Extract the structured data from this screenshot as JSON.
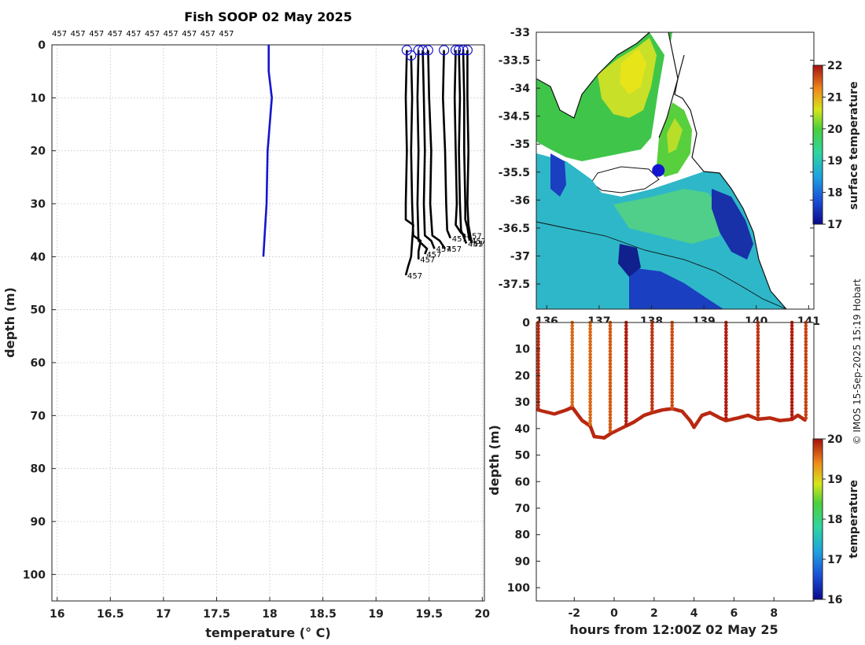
{
  "title": "Fish SOOP 02 May 2025",
  "credit": "© IMOS 15-Sep-2025 15:19 Hobart",
  "chart_data": [
    {
      "type": "line",
      "panel": "profile",
      "title": "Fish SOOP 02 May 2025",
      "xlabel": "temperature (° C)",
      "ylabel": "depth (m)",
      "xlim": [
        15.95,
        20.02
      ],
      "ylim": [
        0,
        105
      ],
      "y_reversed": true,
      "grid": true,
      "xticks": [
        "16",
        "16.5",
        "17",
        "17.5",
        "18",
        "18.5",
        "19",
        "19.5",
        "20"
      ],
      "yticks": [
        "0",
        "10",
        "20",
        "30",
        "40",
        "50",
        "60",
        "70",
        "80",
        "90",
        "100"
      ],
      "top_labels": [
        "457",
        "457",
        "457",
        "457",
        "457",
        "457",
        "457",
        "457",
        "457",
        "457"
      ],
      "mean_profile": {
        "color": "#1515d0",
        "points": [
          [
            17.99,
            0
          ],
          [
            17.99,
            5
          ],
          [
            18.02,
            10
          ],
          [
            17.98,
            20
          ],
          [
            17.97,
            30
          ],
          [
            17.94,
            40
          ]
        ]
      },
      "casts": [
        {
          "label": "457",
          "points": [
            [
              19.29,
              1
            ],
            [
              19.28,
              10
            ],
            [
              19.29,
              20
            ],
            [
              19.28,
              30
            ],
            [
              19.28,
              33
            ],
            [
              19.35,
              34
            ],
            [
              19.33,
              40
            ],
            [
              19.3,
              42
            ],
            [
              19.28,
              43.5
            ]
          ]
        },
        {
          "label": "457",
          "points": [
            [
              19.33,
              2
            ],
            [
              19.34,
              10
            ],
            [
              19.33,
              20
            ],
            [
              19.34,
              30
            ],
            [
              19.35,
              36
            ],
            [
              19.42,
              37
            ],
            [
              19.4,
              39
            ],
            [
              19.4,
              40.5
            ]
          ]
        },
        {
          "label": "457",
          "points": [
            [
              19.4,
              1
            ],
            [
              19.39,
              10
            ],
            [
              19.4,
              20
            ],
            [
              19.39,
              30
            ],
            [
              19.4,
              37
            ],
            [
              19.48,
              38.5
            ],
            [
              19.46,
              39.5
            ]
          ]
        },
        {
          "label": "457",
          "points": [
            [
              19.44,
              1
            ],
            [
              19.45,
              10
            ],
            [
              19.46,
              20
            ],
            [
              19.45,
              30
            ],
            [
              19.46,
              36
            ],
            [
              19.52,
              37
            ],
            [
              19.55,
              38.5
            ]
          ]
        },
        {
          "label": "457",
          "points": [
            [
              19.49,
              1
            ],
            [
              19.5,
              10
            ],
            [
              19.52,
              20
            ],
            [
              19.51,
              30
            ],
            [
              19.53,
              36
            ],
            [
              19.6,
              37
            ],
            [
              19.65,
              38.5
            ]
          ]
        },
        {
          "label": "457",
          "points": [
            [
              19.64,
              1
            ],
            [
              19.63,
              10
            ],
            [
              19.65,
              20
            ],
            [
              19.66,
              30
            ],
            [
              19.67,
              35
            ],
            [
              19.7,
              36.5
            ]
          ]
        },
        {
          "label": "457",
          "points": [
            [
              19.75,
              1
            ],
            [
              19.74,
              10
            ],
            [
              19.75,
              20
            ],
            [
              19.76,
              30
            ],
            [
              19.75,
              34
            ],
            [
              19.8,
              35.5
            ],
            [
              19.84,
              36
            ]
          ]
        },
        {
          "label": "457",
          "points": [
            [
              19.78,
              1
            ],
            [
              19.79,
              10
            ],
            [
              19.78,
              20
            ],
            [
              19.79,
              30
            ],
            [
              19.8,
              35
            ],
            [
              19.85,
              37.5
            ]
          ]
        },
        {
          "label": "457",
          "points": [
            [
              19.82,
              1
            ],
            [
              19.83,
              10
            ],
            [
              19.83,
              20
            ],
            [
              19.84,
              30
            ],
            [
              19.84,
              33
            ],
            [
              19.86,
              34.5
            ],
            [
              19.88,
              37
            ]
          ]
        },
        {
          "label": "457",
          "points": [
            [
              19.86,
              1
            ],
            [
              19.86,
              10
            ],
            [
              19.87,
              20
            ],
            [
              19.86,
              30
            ],
            [
              19.87,
              34
            ],
            [
              19.9,
              37.5
            ]
          ]
        }
      ]
    },
    {
      "type": "heatmap",
      "panel": "map",
      "xticks": [
        "136",
        "137",
        "138",
        "139",
        "140",
        "141"
      ],
      "yticks": [
        "-33",
        "-33.5",
        "-34",
        "-34.5",
        "-35",
        "-35.5",
        "-36",
        "-36.5",
        "-37",
        "-37.5"
      ],
      "xlim": [
        135.8,
        141.1
      ],
      "ylim": [
        -37.95,
        -33
      ],
      "colorbar": {
        "label": "surface temperature",
        "min": 17,
        "max": 22,
        "ticks": [
          "17",
          "18",
          "19",
          "20",
          "21",
          "22"
        ]
      },
      "location_marker": {
        "lon": 138.13,
        "lat": -35.47,
        "color": "#1515d0"
      }
    },
    {
      "type": "scatter",
      "panel": "depth-time",
      "xlabel": "hours from 12:00Z 02 May 25",
      "ylabel": "depth (m)",
      "xlim": [
        -3.9,
        10
      ],
      "ylim": [
        0,
        105
      ],
      "y_reversed": true,
      "xticks": [
        "-2",
        "0",
        "2",
        "4",
        "6",
        "8"
      ],
      "yticks": [
        "0",
        "10",
        "20",
        "30",
        "40",
        "50",
        "60",
        "70",
        "80",
        "90",
        "100"
      ],
      "colorbar": {
        "label": "temperature",
        "min": 16,
        "max": 20,
        "ticks": [
          "16",
          "17",
          "18",
          "19",
          "20"
        ]
      },
      "track_temperature": 19.8,
      "dives": [
        {
          "time": -3.8,
          "temperature": 19.8
        },
        {
          "time": -2.1,
          "temperature": 19.3
        },
        {
          "time": -1.2,
          "temperature": 19.3
        },
        {
          "time": -0.2,
          "temperature": 19.4
        },
        {
          "time": 0.6,
          "temperature": 19.9
        },
        {
          "time": 1.9,
          "temperature": 19.7
        },
        {
          "time": 2.9,
          "temperature": 19.5
        },
        {
          "time": 5.6,
          "temperature": 19.9
        },
        {
          "time": 7.2,
          "temperature": 19.7
        },
        {
          "time": 8.9,
          "temperature": 19.9
        },
        {
          "time": 9.6,
          "temperature": 19.6
        }
      ],
      "floor": [
        [
          -3.8,
          33
        ],
        [
          -3.0,
          34.5
        ],
        [
          -2.4,
          33
        ],
        [
          -2.1,
          32
        ],
        [
          -1.9,
          34
        ],
        [
          -1.6,
          37
        ],
        [
          -1.3,
          38.5
        ],
        [
          -1.2,
          39
        ],
        [
          -1.0,
          43
        ],
        [
          -0.5,
          43.5
        ],
        [
          -0.2,
          42
        ],
        [
          0.6,
          39
        ],
        [
          1.0,
          37.5
        ],
        [
          1.5,
          35
        ],
        [
          1.9,
          34
        ],
        [
          2.4,
          33
        ],
        [
          2.9,
          32.5
        ],
        [
          3.4,
          33.5
        ],
        [
          3.8,
          37
        ],
        [
          4.0,
          39.5
        ],
        [
          4.4,
          35
        ],
        [
          4.8,
          34
        ],
        [
          5.3,
          36
        ],
        [
          5.6,
          37
        ],
        [
          6.2,
          36
        ],
        [
          6.7,
          35
        ],
        [
          7.2,
          36.5
        ],
        [
          7.8,
          36
        ],
        [
          8.3,
          37
        ],
        [
          8.9,
          36.5
        ],
        [
          9.2,
          35
        ],
        [
          9.6,
          37
        ]
      ]
    }
  ]
}
